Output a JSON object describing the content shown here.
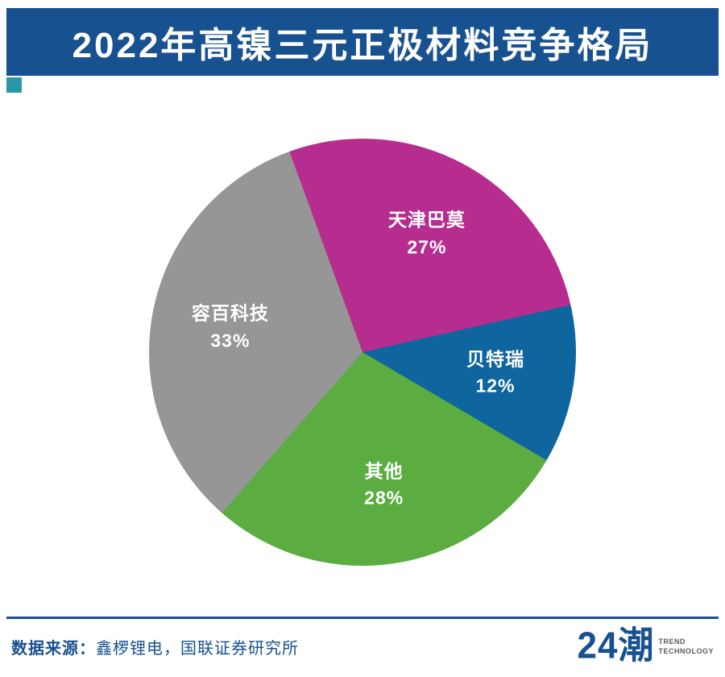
{
  "header": {
    "title": "2022年高镍三元正极材料竞争格局",
    "banner_color": "#17518f",
    "accent_square_color": "#2b96a8"
  },
  "chart_data": {
    "type": "pie",
    "title": "2022年高镍三元正极材料竞争格局",
    "start_angle_deg": -20,
    "label_radius_ratio": 0.63,
    "labels_inside": true,
    "legend_position": "none",
    "slices": [
      {
        "label": "天津巴莫",
        "value": 27,
        "display": "27%",
        "color": "#b72d8f"
      },
      {
        "label": "贝特瑞",
        "value": 12,
        "display": "12%",
        "color": "#0f659e"
      },
      {
        "label": "其他",
        "value": 28,
        "display": "28%",
        "color": "#5bad42"
      },
      {
        "label": "容百科技",
        "value": 33,
        "display": "33%",
        "color": "#969696"
      }
    ]
  },
  "footer": {
    "source_label": "数据来源：",
    "source_text": "鑫椤锂电，国联证券研究所",
    "text_color": "#17518f",
    "line_color": "#17518f",
    "logo_text": "24潮",
    "logo_sub1": "TREND",
    "logo_sub2": "TECHNOLOGY"
  }
}
